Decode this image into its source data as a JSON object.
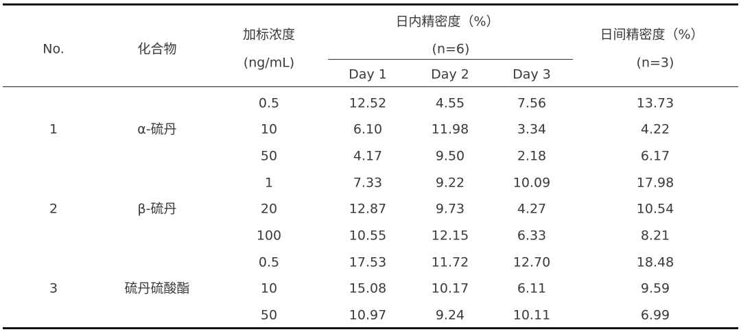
{
  "table": {
    "headers": {
      "no": "No.",
      "compound": "化合物",
      "conc_line1": "加标浓度",
      "conc_line2": "(ng/mL)",
      "intra_line1": "日内精密度（%）",
      "intra_line2": "(n=6)",
      "day1": "Day 1",
      "day2": "Day 2",
      "day3": "Day 3",
      "inter_line1": "日间精密度（%）",
      "inter_line2": "(n=3)"
    },
    "groups": [
      {
        "no": "1",
        "compound": "α-硫丹",
        "rows": [
          {
            "conc": "0.5",
            "day1": "12.52",
            "day2": "4.55",
            "day3": "7.56",
            "inter": "13.73"
          },
          {
            "conc": "10",
            "day1": "6.10",
            "day2": "11.98",
            "day3": "3.34",
            "inter": "4.22"
          },
          {
            "conc": "50",
            "day1": "4.17",
            "day2": "9.50",
            "day3": "2.18",
            "inter": "6.17"
          }
        ]
      },
      {
        "no": "2",
        "compound": "β-硫丹",
        "rows": [
          {
            "conc": "1",
            "day1": "7.33",
            "day2": "9.22",
            "day3": "10.09",
            "inter": "17.98"
          },
          {
            "conc": "20",
            "day1": "12.87",
            "day2": "9.73",
            "day3": "4.27",
            "inter": "10.54"
          },
          {
            "conc": "100",
            "day1": "10.55",
            "day2": "12.15",
            "day3": "6.33",
            "inter": "8.21"
          }
        ]
      },
      {
        "no": "3",
        "compound": "硫丹硫酸酯",
        "rows": [
          {
            "conc": "0.5",
            "day1": "17.53",
            "day2": "11.72",
            "day3": "12.70",
            "inter": "18.48"
          },
          {
            "conc": "10",
            "day1": "15.08",
            "day2": "10.17",
            "day3": "6.11",
            "inter": "9.59"
          },
          {
            "conc": "50",
            "day1": "10.97",
            "day2": "9.24",
            "day3": "10.11",
            "inter": "6.99"
          }
        ]
      }
    ]
  }
}
